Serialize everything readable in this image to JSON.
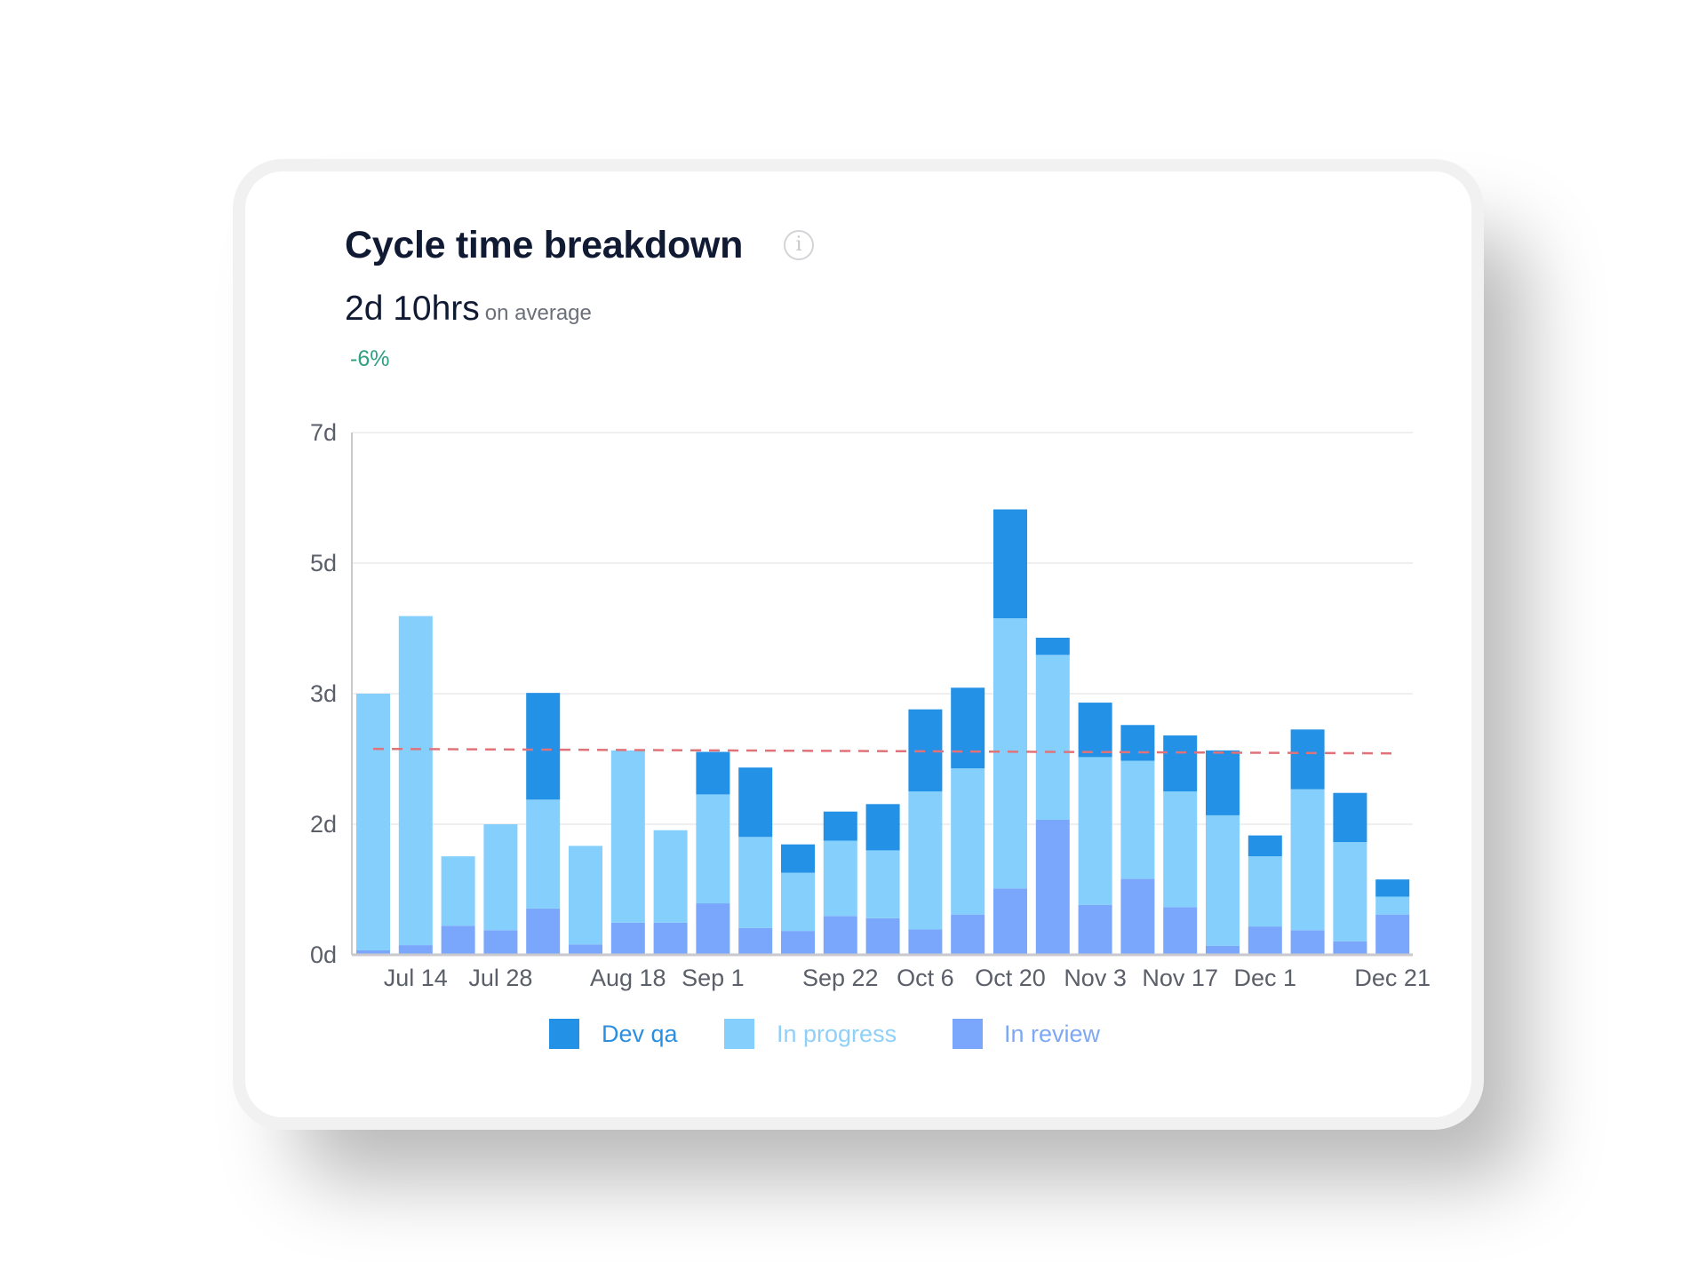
{
  "header": {
    "title": "Cycle time breakdown",
    "info_icon": "info-circle-icon",
    "average_value": "2d 10hrs",
    "average_label": "on average",
    "change": "-6%",
    "change_color": "#2f9f82"
  },
  "chart_data": {
    "type": "bar",
    "stacked": true,
    "title": "Cycle time breakdown",
    "xlabel": "",
    "ylabel": "",
    "ylim": [
      0,
      7
    ],
    "y_ticks": [
      0,
      1.75,
      3.5,
      5.25,
      7
    ],
    "y_tick_labels": [
      "0d",
      "2d",
      "3d",
      "5d",
      "7d"
    ],
    "grid": true,
    "legend_position": "bottom",
    "categories": [
      "",
      "Jul 14",
      "",
      "Jul 28",
      "",
      "",
      "Aug 18",
      "",
      "Sep 1",
      "",
      "",
      "Sep 22",
      "",
      "Oct 6",
      "",
      "Oct 20",
      "",
      "Nov 3",
      "",
      "Nov 17",
      "",
      "Dec 1",
      "",
      "",
      "Dec 21"
    ],
    "series": [
      {
        "name": "In review",
        "color": "#7aa7fb",
        "values": [
          0.06,
          0.13,
          0.39,
          0.33,
          0.62,
          0.14,
          0.43,
          0.43,
          0.69,
          0.36,
          0.32,
          0.52,
          0.49,
          0.34,
          0.54,
          0.89,
          1.81,
          0.67,
          1.02,
          0.64,
          0.12,
          0.38,
          0.33,
          0.18,
          0.54
        ]
      },
      {
        "name": "In progress",
        "color": "#84cffc",
        "values": [
          3.44,
          4.41,
          0.93,
          1.42,
          1.46,
          1.32,
          2.31,
          1.24,
          1.46,
          1.22,
          0.78,
          1.01,
          0.91,
          1.85,
          1.96,
          3.62,
          2.21,
          1.98,
          1.58,
          1.55,
          1.75,
          0.94,
          1.89,
          1.33,
          0.24
        ]
      },
      {
        "name": "Dev qa",
        "color": "#2391e6",
        "values": [
          0,
          0,
          0,
          0,
          1.43,
          0,
          0,
          0,
          0.57,
          0.93,
          0.38,
          0.39,
          0.62,
          1.1,
          1.08,
          1.46,
          0.23,
          0.73,
          0.48,
          0.75,
          0.87,
          0.28,
          0.8,
          0.66,
          0.23
        ]
      }
    ],
    "reference_line": {
      "style": "dashed",
      "color": "#e0737a",
      "start": 2.76,
      "end": 2.7
    }
  },
  "legend": [
    {
      "label": "Dev qa",
      "color": "#2391e6",
      "text_color": "#2a8fe0"
    },
    {
      "label": "In progress",
      "color": "#84cffc",
      "text_color": "#8fd0f8"
    },
    {
      "label": "In review",
      "color": "#7aa7fb",
      "text_color": "#7ea8f5"
    }
  ]
}
